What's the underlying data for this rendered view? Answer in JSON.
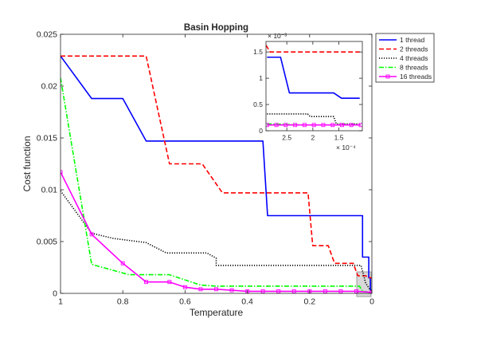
{
  "chart_data": [
    {
      "type": "line",
      "title": "Basin Hopping",
      "xlabel": "Temperature",
      "ylabel": "Cost function",
      "xlim": [
        1,
        0
      ],
      "ylim": [
        0,
        0.025
      ],
      "x_reversed": true,
      "grid": false,
      "legend_position": "outside-top-right",
      "xticks": [
        1,
        0.8,
        0.6,
        0.4,
        0.2,
        0
      ],
      "xtick_labels": [
        "1",
        "0.8",
        "0.6",
        "0.4",
        "0.2",
        "0"
      ],
      "yticks": [
        0,
        0.005,
        0.01,
        0.015,
        0.02,
        0.025
      ],
      "ytick_labels": [
        "0",
        "0.005",
        "0.01",
        "0.015",
        "0.02",
        "0.025"
      ],
      "series": [
        {
          "name": "1 thread",
          "color": "#0000ff",
          "style": "solid",
          "marker": "none",
          "x": [
            1,
            0.9,
            0.8,
            0.725,
            0.35,
            0.35,
            0.335,
            0.03,
            0.03,
            0.01,
            0.01,
            0.005,
            0.005,
            0
          ],
          "y": [
            0.0229,
            0.0188,
            0.0188,
            0.0147,
            0.0147,
            0.0147,
            0.0075,
            0.0075,
            0.0035,
            0.0035,
            0.0015,
            0.0015,
            0.0003,
            0.0003
          ]
        },
        {
          "name": "2 threads",
          "color": "#ff0000",
          "style": "dashed",
          "marker": "none",
          "x": [
            1,
            0.725,
            0.65,
            0.545,
            0.48,
            0.41,
            0.33,
            0.205,
            0.19,
            0.14,
            0.12,
            0.06,
            0.045,
            0.02,
            0.015,
            0.005,
            0
          ],
          "y": [
            0.0229,
            0.0229,
            0.0125,
            0.0125,
            0.0097,
            0.0097,
            0.0097,
            0.0097,
            0.0046,
            0.0046,
            0.0029,
            0.0029,
            0.0017,
            0.0017,
            0.0016,
            0.0015,
            0.0015
          ]
        },
        {
          "name": "4 threads",
          "color": "#000000",
          "style": "dotted",
          "marker": "none",
          "x": [
            1,
            0.9,
            0.83,
            0.725,
            0.66,
            0.53,
            0.5,
            0.5,
            0.2,
            0.185,
            0.035,
            0.02,
            0.005,
            0
          ],
          "y": [
            0.0099,
            0.0058,
            0.0053,
            0.0049,
            0.0039,
            0.0039,
            0.0034,
            0.0027,
            0.0027,
            0.0027,
            0.0027,
            0.001,
            0.0003,
            0.0003
          ]
        },
        {
          "name": "8 threads",
          "color": "#00ff00",
          "style": "dashdot",
          "marker": "none",
          "x": [
            1,
            0.9,
            0.78,
            0.65,
            0.55,
            0.5,
            0.04,
            0.03,
            0.005,
            0
          ],
          "y": [
            0.0208,
            0.0028,
            0.0018,
            0.0018,
            0.0008,
            0.0007,
            0.0007,
            0.0002,
            0.0001,
            0.0001
          ]
        },
        {
          "name": "16 threads",
          "color": "#ff00ff",
          "style": "solid",
          "marker": "square",
          "x": [
            1,
            0.9,
            0.8,
            0.725,
            0.65,
            0.6,
            0.55,
            0.5,
            0.45,
            0.4,
            0.35,
            0.3,
            0.25,
            0.2,
            0.15,
            0.1,
            0.05,
            0
          ],
          "y": [
            0.0117,
            0.0057,
            0.0029,
            0.0011,
            0.0011,
            0.0006,
            0.0004,
            0.0004,
            0.0003,
            0.0002,
            0.0002,
            0.0002,
            0.0002,
            0.0002,
            0.0002,
            0.0002,
            0.0002,
            0.0001
          ]
        }
      ]
    },
    {
      "type": "line",
      "title": "",
      "xlim": [
        0.00029,
        0.000105
      ],
      "ylim": [
        0,
        0.0017
      ],
      "x_reversed": true,
      "x_exponent": "× 10⁻⁴",
      "y_exponent": "× 10⁻³",
      "xticks": [
        0.00025,
        0.0002,
        0.00015
      ],
      "xtick_labels": [
        "2.5",
        "2",
        "1.5"
      ],
      "yticks": [
        0,
        0.0005,
        0.001,
        0.0015
      ],
      "ytick_labels": [
        "0",
        "0.5",
        "1",
        "1.5"
      ],
      "series": [
        {
          "name": "1 thread",
          "color": "#0000ff",
          "style": "solid",
          "marker": "none",
          "x": [
            0.000288,
            0.000262,
            0.000245,
            0.000225,
            0.00016,
            0.000145,
            0.00011
          ],
          "y": [
            0.0014,
            0.0014,
            0.00072,
            0.00072,
            0.00072,
            0.00062,
            0.00062
          ]
        },
        {
          "name": "2 threads",
          "color": "#ff0000",
          "style": "dashed",
          "marker": "none",
          "x": [
            0.00029,
            0.000282,
            0.00026,
            0.00022,
            0.00018,
            0.00014,
            0.00011
          ],
          "y": [
            0.00163,
            0.0015,
            0.0015,
            0.0015,
            0.0015,
            0.0015,
            0.0015
          ]
        },
        {
          "name": "4 threads",
          "color": "#000000",
          "style": "dotted",
          "marker": "none",
          "x": [
            0.000288,
            0.00021,
            0.000205,
            0.00016,
            0.000155,
            0.00011
          ],
          "y": [
            0.00032,
            0.00032,
            0.00027,
            0.00027,
            0.00013,
            0.00013
          ]
        },
        {
          "name": "8 threads",
          "color": "#00ff00",
          "style": "dashdot",
          "marker": "none",
          "x": [
            0.000288,
            0.000255,
            0.00022,
            0.00018,
            0.00015,
            0.00011
          ],
          "y": [
            0.00013,
            0.00012,
            0.00011,
            0.00011,
            0.00011,
            0.00011
          ]
        },
        {
          "name": "16 threads",
          "color": "#ff00ff",
          "style": "solid",
          "marker": "square",
          "x": [
            0.000288,
            0.00027,
            0.000252,
            0.000234,
            0.000216,
            0.000198,
            0.00018,
            0.000162,
            0.000144,
            0.000126,
            0.000108
          ],
          "y": [
            0.00011,
            0.00011,
            0.00011,
            0.00011,
            0.00011,
            0.00011,
            0.00011,
            0.00011,
            0.00011,
            0.00011,
            0.00011
          ]
        }
      ]
    }
  ]
}
